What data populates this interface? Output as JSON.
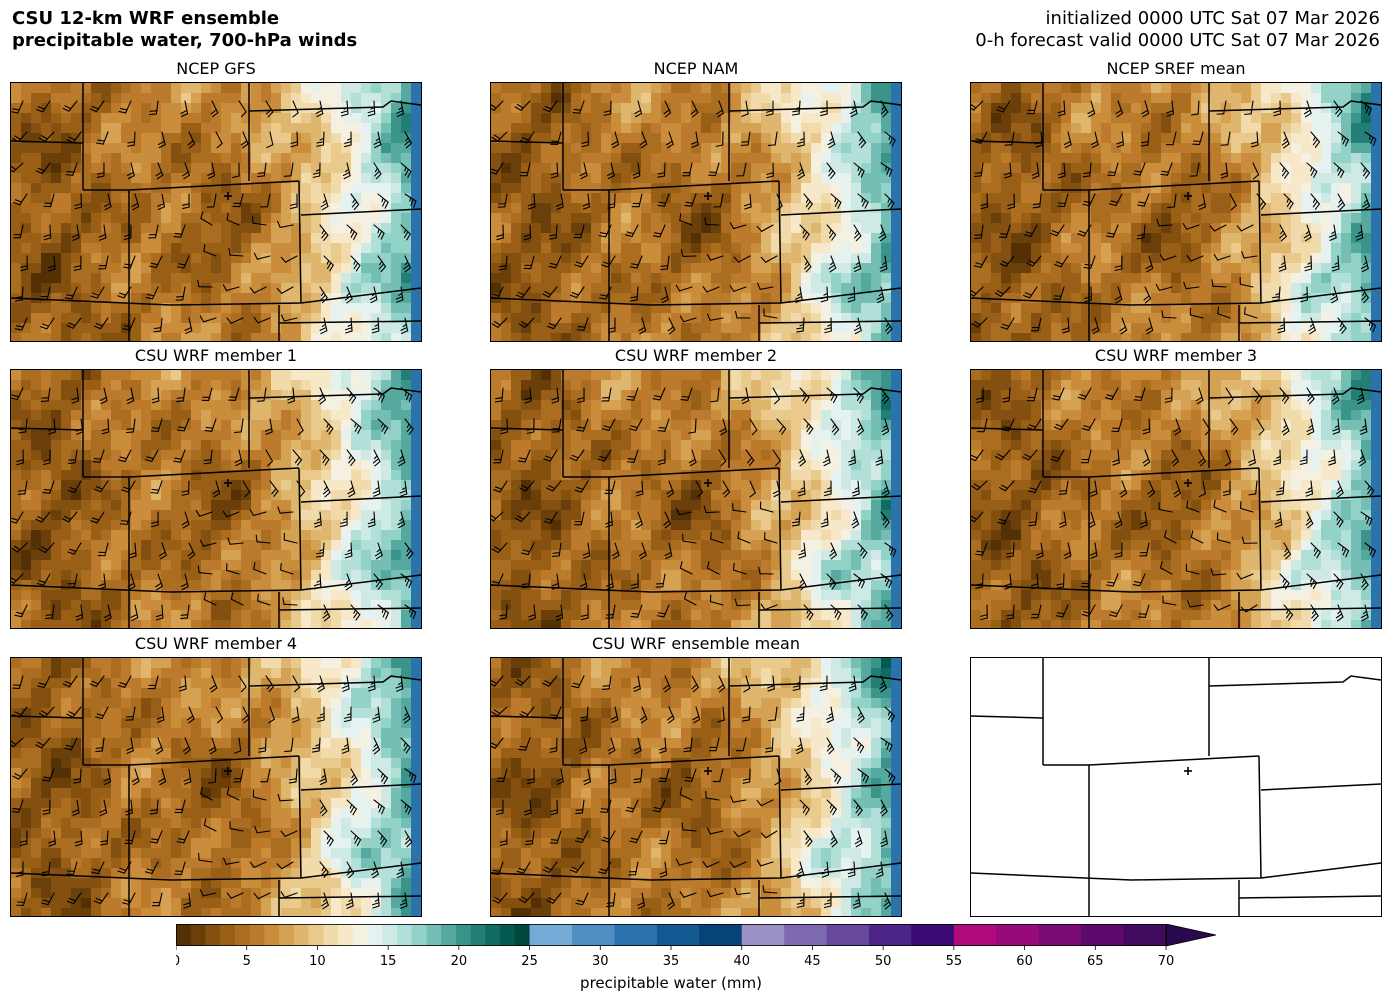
{
  "header": {
    "title_line1": "CSU 12-km WRF ensemble",
    "title_line2": "precipitable water, 700-hPa winds",
    "init_line": "initialized 0000 UTC Sat 07 Mar 2026",
    "valid_line": "0-h forecast valid 0000 UTC Sat 07 Mar 2026"
  },
  "panels": [
    {
      "title": "NCEP GFS",
      "variant": 0
    },
    {
      "title": "NCEP NAM",
      "variant": 1
    },
    {
      "title": "NCEP SREF mean",
      "variant": 2
    },
    {
      "title": "CSU WRF member 1",
      "variant": 3
    },
    {
      "title": "CSU WRF member 2",
      "variant": 4
    },
    {
      "title": "CSU WRF member 3",
      "variant": 5
    },
    {
      "title": "CSU WRF member 4",
      "variant": 6
    },
    {
      "title": "CSU WRF ensemble mean",
      "variant": 7
    },
    {
      "title": "",
      "variant": -1
    }
  ],
  "colorbar": {
    "label": "precipitable water (mm)",
    "min": 0,
    "max": 70,
    "ticks": [
      "0",
      "5",
      "10",
      "15",
      "20",
      "25",
      "30",
      "35",
      "40",
      "45",
      "50",
      "55",
      "60",
      "65",
      "70"
    ],
    "extend": "max",
    "segments": [
      {
        "from": 0,
        "to": 25,
        "colors": [
          "#543005",
          "#6b3f0a",
          "#83500f",
          "#995f17",
          "#ab6d20",
          "#bc7b2c",
          "#c98d3c",
          "#d5a253",
          "#dfb66d",
          "#e9c98c",
          "#f1dbaa",
          "#f6e8c8",
          "#f4f1e2",
          "#e6f2ef",
          "#cfeae5",
          "#b2e0d8",
          "#93d2c7",
          "#74beb3",
          "#56a99e",
          "#3b948a",
          "#227f76",
          "#106b62",
          "#045a50",
          "#01473d"
        ]
      },
      {
        "from": 25,
        "to": 40,
        "colors": [
          "#74aad6",
          "#4f8fc4",
          "#2b73ad",
          "#135a93",
          "#054379"
        ]
      },
      {
        "from": 40,
        "to": 55,
        "colors": [
          "#9b90c4",
          "#7e6ab0",
          "#66499c",
          "#4d2588",
          "#3a0a72"
        ]
      },
      {
        "from": 55,
        "to": 70,
        "colors": [
          "#b00b7d",
          "#970a79",
          "#7a0a74",
          "#5c0a6c",
          "#420a5c"
        ]
      }
    ],
    "extend_color": "#2a0a4e"
  }
}
